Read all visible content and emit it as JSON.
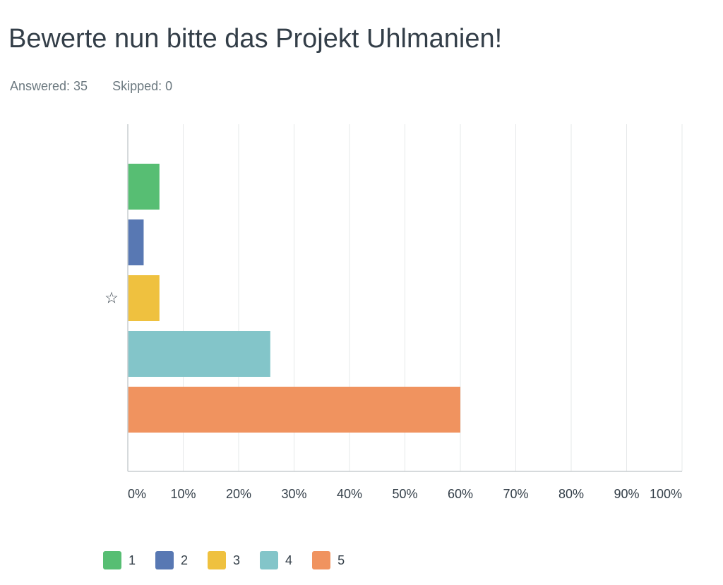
{
  "question": {
    "title": "Bewerte nun bitte das Projekt Uhlmanien!"
  },
  "stats": {
    "answered": "Answered: 35",
    "skipped": "Skipped: 0"
  },
  "row_icon": "star-outline-icon",
  "colors": {
    "1": "#57be73",
    "2": "#5878b3",
    "3": "#efc13f",
    "4": "#83c5c9",
    "5": "#f0935f",
    "grid": "#e6e8e9",
    "axis": "#c9cdd0"
  },
  "chart_data": {
    "type": "bar",
    "orientation": "horizontal",
    "title": "",
    "xlabel": "",
    "ylabel": "",
    "categories": [
      "☆"
    ],
    "series": [
      {
        "name": "1",
        "values": [
          5.71
        ]
      },
      {
        "name": "2",
        "values": [
          2.86
        ]
      },
      {
        "name": "3",
        "values": [
          5.71
        ]
      },
      {
        "name": "4",
        "values": [
          25.71
        ]
      },
      {
        "name": "5",
        "values": [
          60.0
        ]
      }
    ],
    "xlim": [
      0,
      100
    ],
    "ticks": [
      0,
      10,
      20,
      30,
      40,
      50,
      60,
      70,
      80,
      90,
      100
    ],
    "tick_labels": [
      "0%",
      "10%",
      "20%",
      "30%",
      "40%",
      "50%",
      "60%",
      "70%",
      "80%",
      "90%",
      "100%"
    ],
    "grid": true,
    "legend_position": "bottom-left"
  }
}
